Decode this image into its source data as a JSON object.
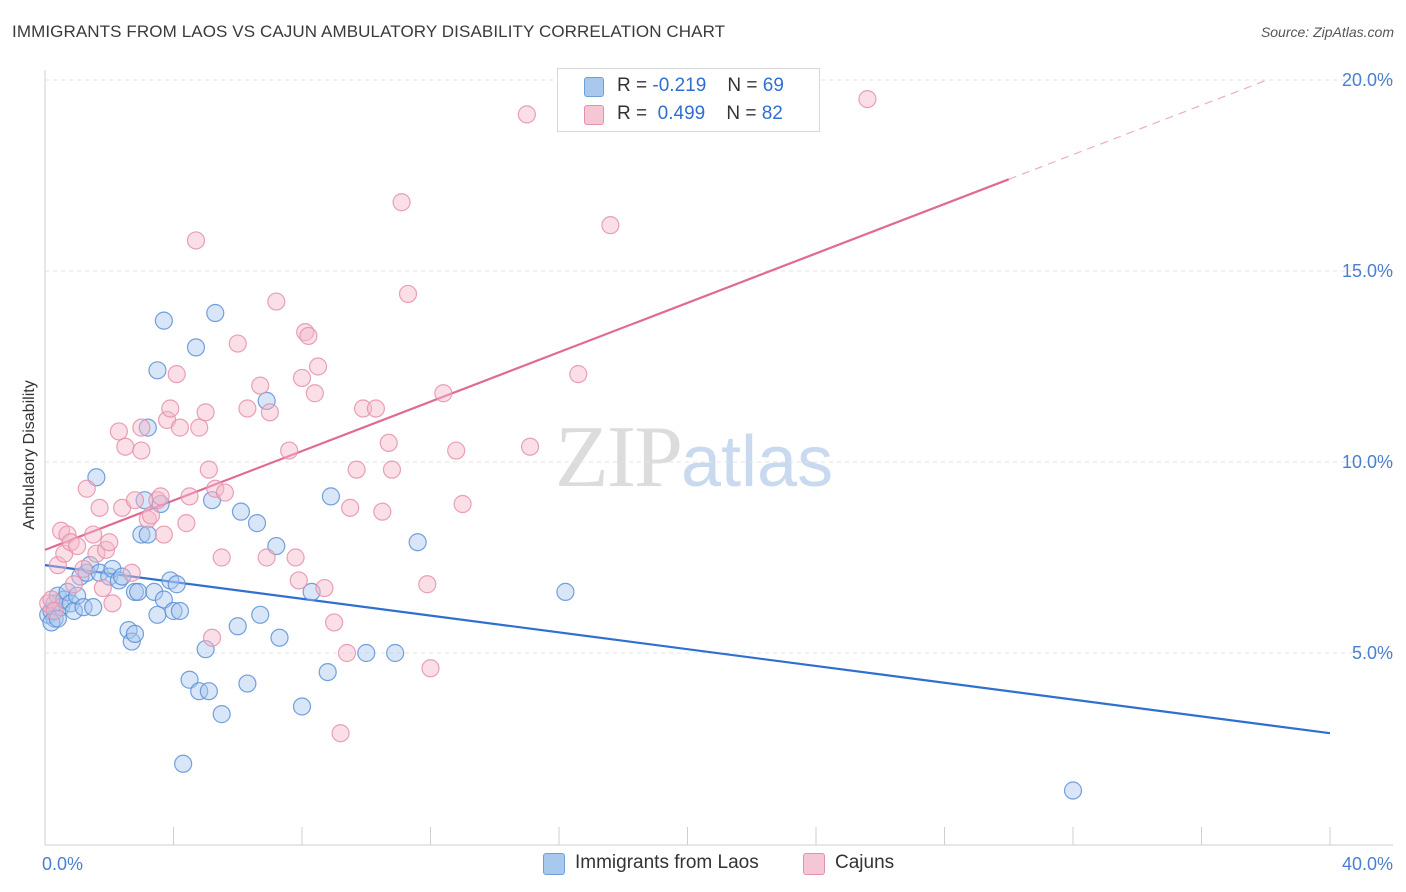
{
  "header": {
    "title": "IMMIGRANTS FROM LAOS VS CAJUN AMBULATORY DISABILITY CORRELATION CHART",
    "source": "Source: ZipAtlas.com"
  },
  "watermark": {
    "zip": "ZIP",
    "atlas": "atlas"
  },
  "legend": {
    "rows": [
      {
        "r_label": "R =",
        "r_value": "-0.219",
        "n_label": "N =",
        "n_value": "69",
        "color": "#a9c8ee"
      },
      {
        "r_label": "R =",
        "r_value": "0.499",
        "n_label": "N =",
        "n_value": "82",
        "color": "#f5b8c9"
      }
    ]
  },
  "bottom_legend": {
    "items": [
      {
        "label": "Immigrants from Laos",
        "color": "#a9c8ee"
      },
      {
        "label": "Cajuns",
        "color": "#f5b8c9"
      }
    ]
  },
  "chart_data": {
    "type": "scatter",
    "title": "IMMIGRANTS FROM LAOS VS CAJUN AMBULATORY DISABILITY CORRELATION CHART",
    "xlabel": "",
    "ylabel": "Ambulatory Disability",
    "xlim": [
      0,
      40
    ],
    "ylim": [
      0,
      20.5
    ],
    "x_tick_labels": [
      "0.0%",
      "40.0%"
    ],
    "y_ticks": [
      5,
      10,
      15,
      20
    ],
    "y_tick_labels": [
      "5.0%",
      "10.0%",
      "15.0%",
      "20.0%"
    ],
    "grid": true,
    "colors": {
      "blue": "#2f6fd0",
      "pink": "#e06a94",
      "blue_fill": "#a9c8ee",
      "pink_fill": "#f5b8c9"
    },
    "series": [
      {
        "name": "Immigrants from Laos",
        "color": "#2f6fd0",
        "trend": {
          "x": [
            0,
            40
          ],
          "y": [
            7.3,
            2.9
          ]
        },
        "points": [
          [
            0.1,
            6.0
          ],
          [
            0.2,
            6.1
          ],
          [
            0.3,
            5.9
          ],
          [
            0.3,
            6.3
          ],
          [
            0.4,
            6.5
          ],
          [
            0.5,
            6.2
          ],
          [
            0.6,
            6.4
          ],
          [
            0.7,
            6.6
          ],
          [
            0.8,
            6.3
          ],
          [
            0.9,
            6.1
          ],
          [
            1.0,
            6.5
          ],
          [
            1.1,
            7.0
          ],
          [
            1.2,
            6.2
          ],
          [
            1.3,
            7.1
          ],
          [
            1.4,
            7.3
          ],
          [
            1.5,
            6.2
          ],
          [
            1.6,
            9.6
          ],
          [
            1.7,
            7.1
          ],
          [
            2.0,
            7.0
          ],
          [
            2.1,
            7.2
          ],
          [
            2.3,
            6.9
          ],
          [
            2.4,
            7.0
          ],
          [
            2.6,
            5.6
          ],
          [
            2.7,
            5.3
          ],
          [
            2.8,
            6.6
          ],
          [
            2.8,
            5.5
          ],
          [
            2.9,
            6.6
          ],
          [
            3.0,
            8.1
          ],
          [
            3.1,
            9.0
          ],
          [
            3.2,
            8.1
          ],
          [
            3.2,
            10.9
          ],
          [
            3.4,
            6.6
          ],
          [
            3.5,
            6.0
          ],
          [
            3.5,
            12.4
          ],
          [
            3.6,
            8.9
          ],
          [
            3.7,
            6.4
          ],
          [
            3.7,
            13.7
          ],
          [
            3.9,
            6.9
          ],
          [
            4.0,
            6.1
          ],
          [
            4.1,
            6.8
          ],
          [
            4.2,
            6.1
          ],
          [
            4.3,
            2.1
          ],
          [
            4.5,
            4.3
          ],
          [
            4.7,
            13.0
          ],
          [
            4.8,
            4.0
          ],
          [
            5.0,
            5.1
          ],
          [
            5.1,
            4.0
          ],
          [
            5.2,
            9.0
          ],
          [
            5.3,
            13.9
          ],
          [
            5.5,
            3.4
          ],
          [
            6.0,
            5.7
          ],
          [
            6.1,
            8.7
          ],
          [
            6.3,
            4.2
          ],
          [
            6.6,
            8.4
          ],
          [
            6.7,
            6.0
          ],
          [
            6.9,
            11.6
          ],
          [
            7.2,
            7.8
          ],
          [
            7.3,
            5.4
          ],
          [
            8.0,
            3.6
          ],
          [
            8.3,
            6.6
          ],
          [
            8.8,
            4.5
          ],
          [
            8.9,
            9.1
          ],
          [
            10.0,
            5.0
          ],
          [
            10.9,
            5.0
          ],
          [
            11.6,
            7.9
          ],
          [
            16.2,
            6.6
          ],
          [
            32.0,
            1.4
          ],
          [
            0.2,
            5.8
          ],
          [
            0.4,
            5.9
          ]
        ]
      },
      {
        "name": "Cajuns",
        "color": "#e06a94",
        "trend": {
          "x": [
            0,
            30
          ],
          "y": [
            7.7,
            17.4
          ]
        },
        "points": [
          [
            0.1,
            6.3
          ],
          [
            0.2,
            6.4
          ],
          [
            0.3,
            6.1
          ],
          [
            0.4,
            7.3
          ],
          [
            0.5,
            8.2
          ],
          [
            0.6,
            7.6
          ],
          [
            0.7,
            8.1
          ],
          [
            0.8,
            7.9
          ],
          [
            0.9,
            6.8
          ],
          [
            1.0,
            7.8
          ],
          [
            1.2,
            7.2
          ],
          [
            1.3,
            9.3
          ],
          [
            1.5,
            8.1
          ],
          [
            1.6,
            7.6
          ],
          [
            1.7,
            8.8
          ],
          [
            1.8,
            6.7
          ],
          [
            1.9,
            7.7
          ],
          [
            2.0,
            7.9
          ],
          [
            2.1,
            6.3
          ],
          [
            2.3,
            10.8
          ],
          [
            2.4,
            8.8
          ],
          [
            2.5,
            10.4
          ],
          [
            2.7,
            7.1
          ],
          [
            2.8,
            9.0
          ],
          [
            3.0,
            10.9
          ],
          [
            3.0,
            10.3
          ],
          [
            3.2,
            8.5
          ],
          [
            3.3,
            8.6
          ],
          [
            3.5,
            9.0
          ],
          [
            3.6,
            9.1
          ],
          [
            3.7,
            8.1
          ],
          [
            3.8,
            11.1
          ],
          [
            3.9,
            11.4
          ],
          [
            4.1,
            12.3
          ],
          [
            4.2,
            10.9
          ],
          [
            4.4,
            8.4
          ],
          [
            4.5,
            9.1
          ],
          [
            4.7,
            15.8
          ],
          [
            4.8,
            10.9
          ],
          [
            5.0,
            11.3
          ],
          [
            5.1,
            9.8
          ],
          [
            5.2,
            5.4
          ],
          [
            5.3,
            9.3
          ],
          [
            5.5,
            7.5
          ],
          [
            5.6,
            9.2
          ],
          [
            6.0,
            13.1
          ],
          [
            6.3,
            11.4
          ],
          [
            6.7,
            12.0
          ],
          [
            6.9,
            7.5
          ],
          [
            7.0,
            11.3
          ],
          [
            7.2,
            14.2
          ],
          [
            7.6,
            10.3
          ],
          [
            7.8,
            7.5
          ],
          [
            7.9,
            6.9
          ],
          [
            8.0,
            12.2
          ],
          [
            8.1,
            13.4
          ],
          [
            8.2,
            13.3
          ],
          [
            8.4,
            11.8
          ],
          [
            8.5,
            12.5
          ],
          [
            8.7,
            6.7
          ],
          [
            9.0,
            5.8
          ],
          [
            9.2,
            2.9
          ],
          [
            9.4,
            5.0
          ],
          [
            9.5,
            8.8
          ],
          [
            9.7,
            9.8
          ],
          [
            9.9,
            11.4
          ],
          [
            10.3,
            11.4
          ],
          [
            10.5,
            8.7
          ],
          [
            10.7,
            10.5
          ],
          [
            10.8,
            9.8
          ],
          [
            11.1,
            16.8
          ],
          [
            11.3,
            14.4
          ],
          [
            11.9,
            6.8
          ],
          [
            12.0,
            4.6
          ],
          [
            12.4,
            11.8
          ],
          [
            12.8,
            10.3
          ],
          [
            13.0,
            8.9
          ],
          [
            15.0,
            19.1
          ],
          [
            15.1,
            10.4
          ],
          [
            16.6,
            12.3
          ],
          [
            17.6,
            16.2
          ],
          [
            25.6,
            19.5
          ]
        ]
      }
    ]
  }
}
